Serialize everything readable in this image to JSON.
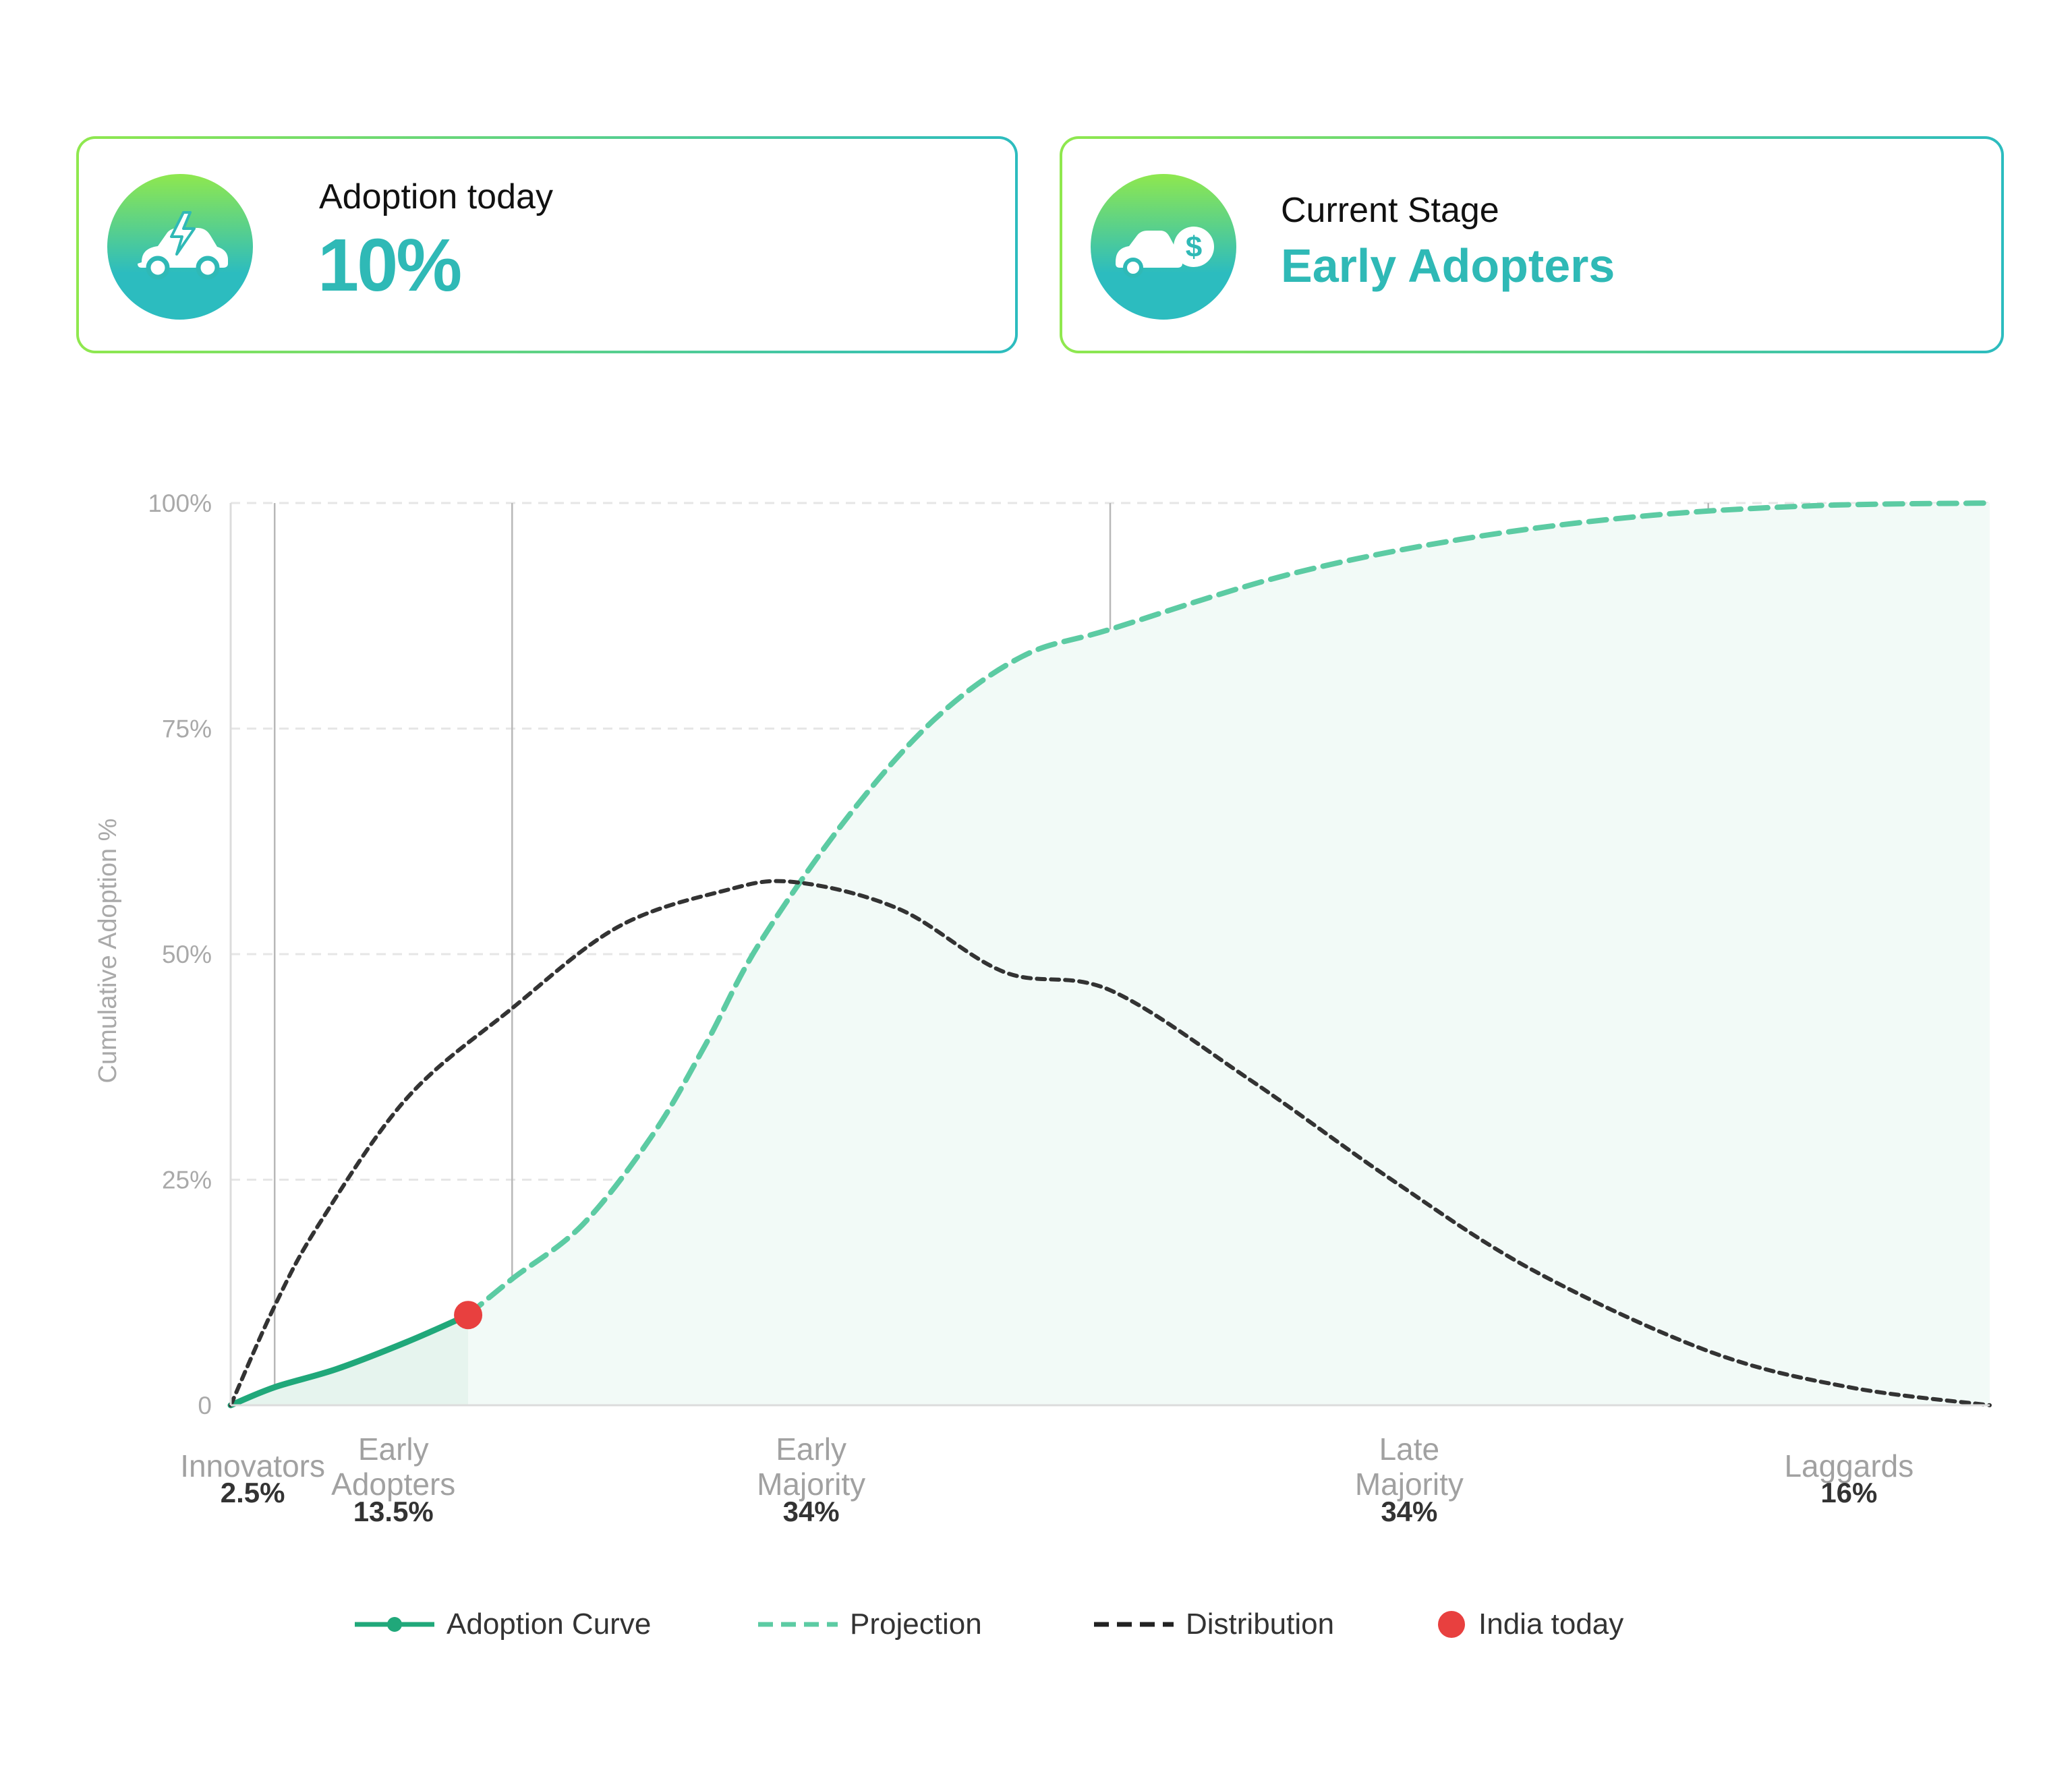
{
  "cards": [
    {
      "label": "Adoption today",
      "value": "10%",
      "icon": "electric-car-icon"
    },
    {
      "label": "Current Stage",
      "value": "Early Adopters",
      "icon": "car-dollar-icon"
    }
  ],
  "colors": {
    "adoption": "#20a87a",
    "projection": "#5ccba3",
    "distribution": "#333333",
    "marker": "#e8403f",
    "fill": "#f2faf7",
    "fill_actual": "#e6f4ee",
    "grid": "#e6e6e6",
    "divider": "#b8b8b8",
    "card_gradient_start": "#8fe84e",
    "card_gradient_end": "#2cbcbf"
  },
  "chart_data": {
    "type": "line",
    "ylabel": "Cumulative Adoption %",
    "ylim": [
      0,
      100
    ],
    "y_ticks": [
      {
        "value": 0,
        "label": "0"
      },
      {
        "value": 25,
        "label": "25%"
      },
      {
        "value": 50,
        "label": "50%"
      },
      {
        "value": 75,
        "label": "75%"
      },
      {
        "value": 100,
        "label": "100%"
      }
    ],
    "grid": true,
    "xlim": [
      0,
      100
    ],
    "segments": [
      {
        "name": [
          "Innovators"
        ],
        "share": "2.5%",
        "start": 0,
        "end": 2.5
      },
      {
        "name": [
          "Early",
          "Adopters"
        ],
        "share": "13.5%",
        "start": 2.5,
        "end": 16
      },
      {
        "name": [
          "Early",
          "Majority"
        ],
        "share": "34%",
        "start": 16,
        "end": 50
      },
      {
        "name": [
          "Late",
          "Majority"
        ],
        "share": "34%",
        "start": 50,
        "end": 84
      },
      {
        "name": [
          "Laggards"
        ],
        "share": "16%",
        "start": 84,
        "end": 100
      }
    ],
    "series": [
      {
        "name": "Adoption Curve",
        "style": "solid",
        "points": [
          [
            0,
            0
          ],
          [
            2.5,
            2
          ],
          [
            6,
            4
          ],
          [
            10,
            7
          ],
          [
            13.5,
            10
          ]
        ]
      },
      {
        "name": "Projection",
        "style": "dashed",
        "points": [
          [
            13.5,
            10
          ],
          [
            16,
            14
          ],
          [
            20,
            20
          ],
          [
            24,
            30
          ],
          [
            27,
            40
          ],
          [
            30,
            51
          ],
          [
            35,
            65
          ],
          [
            40,
            76
          ],
          [
            45,
            83
          ],
          [
            50,
            86
          ],
          [
            60,
            92
          ],
          [
            70,
            96
          ],
          [
            80,
            98.5
          ],
          [
            90,
            99.7
          ],
          [
            100,
            100
          ]
        ]
      },
      {
        "name": "Distribution",
        "style": "dotted",
        "points": [
          [
            0,
            0
          ],
          [
            2.5,
            11
          ],
          [
            5,
            20
          ],
          [
            10,
            34
          ],
          [
            16,
            44
          ],
          [
            22,
            53
          ],
          [
            28,
            57
          ],
          [
            32,
            58
          ],
          [
            38,
            55
          ],
          [
            44,
            48
          ],
          [
            50,
            46
          ],
          [
            58,
            36
          ],
          [
            66,
            25
          ],
          [
            74,
            15
          ],
          [
            84,
            6
          ],
          [
            92,
            2
          ],
          [
            100,
            0
          ]
        ]
      }
    ],
    "annotations": [
      {
        "name": "India today",
        "x": 13.5,
        "y": 10
      }
    ],
    "legend": {
      "position": "bottom",
      "items": [
        "Adoption Curve",
        "Projection",
        "Distribution",
        "India today"
      ]
    }
  }
}
